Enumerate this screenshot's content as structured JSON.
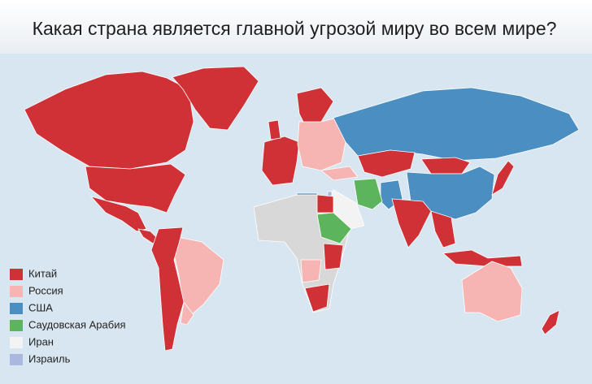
{
  "title": "Какая страна является главной угрозой миру во всем мире?",
  "legend": [
    {
      "label": "Китай",
      "color": "#cf3136"
    },
    {
      "label": "Россия",
      "color": "#f6b4b3"
    },
    {
      "label": "США",
      "color": "#4b8ec2"
    },
    {
      "label": "Саудовская Арабия",
      "color": "#5cb45c"
    },
    {
      "label": "Иран",
      "color": "#f3f3f3"
    },
    {
      "label": "Израиль",
      "color": "#a9b8dc"
    }
  ]
}
